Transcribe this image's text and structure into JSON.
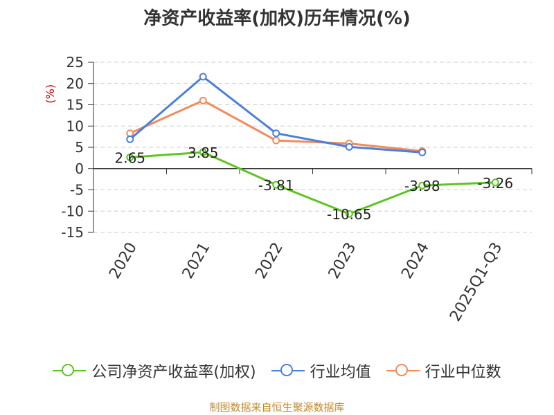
{
  "chart_data": {
    "type": "line",
    "title": "净资产收益率(加权)历年情况(%)",
    "ylabel": "(%)",
    "ylim": [
      -15,
      25
    ],
    "yticks": [
      -15,
      -10,
      -5,
      0,
      5,
      10,
      15,
      20,
      25
    ],
    "categories": [
      "2020",
      "2021",
      "2022",
      "2023",
      "2024",
      "2025Q1-Q3"
    ],
    "series": [
      {
        "name": "公司净资产收益率(加权)",
        "color": "#5ec422",
        "values": [
          2.65,
          3.85,
          -3.81,
          -10.65,
          -3.98,
          -3.26
        ],
        "labels": [
          "2.65",
          "3.85",
          "-3.81",
          "-10.65",
          "-3.98",
          "-3.26"
        ]
      },
      {
        "name": "行业均值",
        "color": "#4a7fdb",
        "values": [
          6.9,
          21.6,
          8.3,
          5.1,
          3.8,
          null
        ]
      },
      {
        "name": "行业中位数",
        "color": "#f28a5a",
        "values": [
          8.3,
          16.0,
          6.6,
          5.9,
          4.1,
          null
        ]
      }
    ],
    "grid": true,
    "legend": "bottom"
  },
  "source": "制图数据来自恒生聚源数据库",
  "colors": {
    "ylabel": "#cc0000",
    "source": "#c08a2a",
    "grid": "#cccccc",
    "axis": "#333333"
  }
}
